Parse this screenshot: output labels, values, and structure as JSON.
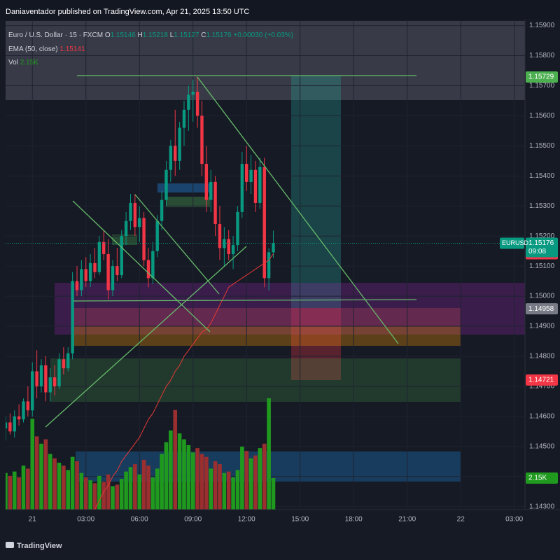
{
  "header": {
    "publisher": "Daniaventador published on TradingView.com, Apr 21, 2025 13:50 UTC",
    "footer": "TradingView"
  },
  "chart_data": {
    "type": "candlestick",
    "symbol": "Euro / U.S. Dollar · 15 · FXCM",
    "ohlc_prefixes": [
      "O",
      "H",
      "L",
      "C"
    ],
    "change": "+0.00030 (+0.03%)",
    "ticker": "EURUSD",
    "countdown": "09:08",
    "up_color": "#089981",
    "down_color": "#f23645",
    "x": [
      0,
      1,
      2,
      3,
      4,
      5,
      6,
      7,
      8,
      9,
      10,
      11,
      12,
      13,
      14,
      15,
      16,
      17,
      18,
      19,
      20,
      21,
      22,
      23,
      24,
      25,
      26,
      27,
      28,
      29,
      30,
      31,
      32,
      33,
      34,
      35,
      36,
      37,
      38,
      39,
      40,
      41,
      42,
      43,
      44,
      45,
      46,
      47,
      48,
      49,
      50,
      51,
      52,
      53,
      54,
      55,
      56,
      57,
      58,
      59,
      60
    ],
    "open": [
      1.1456,
      1.1458,
      1.1455,
      1.146,
      1.1459,
      1.1465,
      1.1462,
      1.1475,
      1.147,
      1.1477,
      1.1468,
      1.1473,
      1.147,
      1.1479,
      1.1476,
      1.1481,
      1.1505,
      1.1502,
      1.1509,
      1.1505,
      1.1511,
      1.1508,
      1.1518,
      1.1514,
      1.1502,
      1.151,
      1.1507,
      1.152,
      1.1525,
      1.1531,
      1.1523,
      1.1526,
      1.1512,
      1.1506,
      1.1515,
      1.1525,
      1.1532,
      1.1542,
      1.155,
      1.1545,
      1.1556,
      1.1562,
      1.1567,
      1.1568,
      1.156,
      1.1544,
      1.1532,
      1.1538,
      1.1524,
      1.1516,
      1.1519,
      1.1514,
      1.1517,
      1.1528,
      1.1544,
      1.1538,
      1.1542,
      1.1531,
      1.1543,
      1.1506,
      1.15146
    ],
    "high": [
      1.146,
      1.1461,
      1.1462,
      1.1464,
      1.1466,
      1.147,
      1.1478,
      1.1482,
      1.1479,
      1.148,
      1.1476,
      1.1477,
      1.1481,
      1.1483,
      1.1483,
      1.1508,
      1.151,
      1.1512,
      1.1513,
      1.1514,
      1.1516,
      1.152,
      1.1522,
      1.1519,
      1.1512,
      1.1516,
      1.1522,
      1.1528,
      1.1534,
      1.1534,
      1.153,
      1.1528,
      1.1516,
      1.1518,
      1.1527,
      1.1535,
      1.1545,
      1.1552,
      1.1562,
      1.1558,
      1.1565,
      1.157,
      1.1572,
      1.1573,
      1.1565,
      1.155,
      1.1542,
      1.154,
      1.153,
      1.1523,
      1.1522,
      1.152,
      1.153,
      1.1548,
      1.155,
      1.1547,
      1.1545,
      1.1546,
      1.1546,
      1.1516,
      1.15218
    ],
    "low": [
      1.1452,
      1.1454,
      1.1453,
      1.1457,
      1.1458,
      1.146,
      1.146,
      1.1466,
      1.1468,
      1.1465,
      1.1465,
      1.1467,
      1.1469,
      1.1474,
      1.1475,
      1.1479,
      1.15,
      1.15,
      1.1503,
      1.1503,
      1.1506,
      1.1507,
      1.1512,
      1.1499,
      1.15,
      1.1505,
      1.1506,
      1.1517,
      1.1522,
      1.152,
      1.1518,
      1.151,
      1.1503,
      1.1504,
      1.1513,
      1.1522,
      1.153,
      1.1538,
      1.154,
      1.1542,
      1.155,
      1.1555,
      1.1558,
      1.1556,
      1.154,
      1.1528,
      1.1528,
      1.152,
      1.1512,
      1.151,
      1.1512,
      1.1509,
      1.1515,
      1.1526,
      1.1535,
      1.1534,
      1.1528,
      1.1529,
      1.1503,
      1.1502,
      1.15127
    ],
    "close": [
      1.1458,
      1.1455,
      1.146,
      1.1459,
      1.1465,
      1.1462,
      1.1475,
      1.147,
      1.1477,
      1.1468,
      1.1473,
      1.147,
      1.1479,
      1.1476,
      1.1481,
      1.1505,
      1.1502,
      1.1509,
      1.1505,
      1.1511,
      1.1508,
      1.1518,
      1.1514,
      1.1502,
      1.151,
      1.1507,
      1.152,
      1.1525,
      1.1531,
      1.1523,
      1.1526,
      1.1512,
      1.1506,
      1.1515,
      1.1525,
      1.1532,
      1.1542,
      1.155,
      1.1545,
      1.1556,
      1.1562,
      1.1567,
      1.1568,
      1.156,
      1.1544,
      1.1532,
      1.1538,
      1.1524,
      1.1516,
      1.1519,
      1.1514,
      1.1517,
      1.1528,
      1.1544,
      1.1538,
      1.1542,
      1.1531,
      1.1543,
      1.1506,
      1.15146,
      1.15176
    ],
    "ema": {
      "name": "EMA (50, close)",
      "color": "#e53935",
      "values": [
        null,
        null,
        null,
        null,
        null,
        null,
        null,
        null,
        null,
        null,
        null,
        null,
        null,
        null,
        null,
        null,
        null,
        null,
        null,
        null,
        1.1429,
        1.1432,
        1.1435,
        1.1437,
        1.144,
        1.1442,
        1.1445,
        1.1447,
        1.1449,
        1.1451,
        1.1453,
        1.1456,
        1.1459,
        1.1461,
        1.1464,
        1.1467,
        1.147,
        1.1472,
        1.1475,
        1.1477,
        1.148,
        1.1482,
        1.1484,
        1.1486,
        1.1488,
        1.1489,
        1.1491,
        1.1494,
        1.1497,
        1.15,
        1.1503,
        1.1504,
        1.1505,
        1.1506,
        1.1507,
        1.1508,
        1.1509,
        1.151,
        1.1511,
        1.1512,
        1.15141
      ]
    },
    "volume": {
      "name": "Vol",
      "up_color": "#1f9a1f",
      "down_color": "#9b2f2f",
      "vlim": [
        0,
        33450
      ],
      "values": [
        2500,
        2300,
        2600,
        2200,
        3000,
        2800,
        6200,
        5000,
        4500,
        4800,
        3800,
        3500,
        3200,
        3000,
        2700,
        3600,
        3300,
        2500,
        2200,
        2000,
        1800,
        2300,
        1900,
        2400,
        1600,
        1700,
        2100,
        2600,
        2900,
        3100,
        2400,
        3400,
        3000,
        2200,
        2800,
        3800,
        4600,
        5400,
        6800,
        5200,
        4800,
        4400,
        3900,
        4200,
        3800,
        3600,
        2800,
        3300,
        3100,
        2500,
        2600,
        2200,
        2700,
        4300,
        4000,
        3500,
        3700,
        4200,
        4500,
        7600,
        2150
      ],
      "value_labels": [
        null,
        null,
        null,
        null,
        null,
        null,
        null,
        null,
        null,
        null,
        null,
        null,
        null,
        null,
        null,
        null,
        null,
        null,
        null,
        null,
        null,
        null,
        null,
        null,
        null,
        null,
        null,
        null,
        null,
        null,
        null,
        null,
        null,
        null,
        null,
        null,
        null,
        null,
        null,
        null,
        null,
        null,
        null,
        null,
        null,
        null,
        null,
        null,
        null,
        null,
        null,
        null,
        null,
        null,
        null,
        null,
        null,
        null,
        null,
        null,
        "2.15K"
      ]
    },
    "levels": [
      {
        "value": 1.15729,
        "color": "#4caf50"
      },
      {
        "value": 1.14958,
        "color": "#787b86"
      },
      {
        "value": 1.14721,
        "color": "#f23645"
      }
    ],
    "xlim": [
      0,
      116.4
    ],
    "xticks": [
      {
        "value": 6,
        "label": "21"
      },
      {
        "value": 18,
        "label": "03:00"
      },
      {
        "value": 30,
        "label": "06:00"
      },
      {
        "value": 42,
        "label": "09:00"
      },
      {
        "value": 54,
        "label": "12:00"
      },
      {
        "value": 66,
        "label": "15:00"
      },
      {
        "value": 78,
        "label": "18:00"
      },
      {
        "value": 90,
        "label": "21:00"
      },
      {
        "value": 102,
        "label": "22"
      },
      {
        "value": 114,
        "label": "03:00"
      }
    ],
    "ylim": [
      1.1429,
      1.1592
    ],
    "yticks": [
      {
        "value": 1.159,
        "label": "1.15900"
      },
      {
        "value": 1.158,
        "label": "1.15800"
      },
      {
        "value": 1.157,
        "label": "1.15700"
      },
      {
        "value": 1.156,
        "label": "1.15600"
      },
      {
        "value": 1.155,
        "label": "1.15500"
      },
      {
        "value": 1.154,
        "label": "1.15400"
      },
      {
        "value": 1.153,
        "label": "1.15300"
      },
      {
        "value": 1.152,
        "label": "1.15200"
      },
      {
        "value": 1.151,
        "label": "1.15100"
      },
      {
        "value": 1.15,
        "label": "1.15000"
      },
      {
        "value": 1.149,
        "label": "1.14900"
      },
      {
        "value": 1.148,
        "label": "1.14800"
      },
      {
        "value": 1.147,
        "label": "1.14700"
      },
      {
        "value": 1.146,
        "label": "1.14600"
      },
      {
        "value": 1.145,
        "label": "1.14500"
      },
      {
        "value": 1.144,
        "label": "1.14400"
      },
      {
        "value": 1.143,
        "label": "1.14300"
      }
    ]
  }
}
